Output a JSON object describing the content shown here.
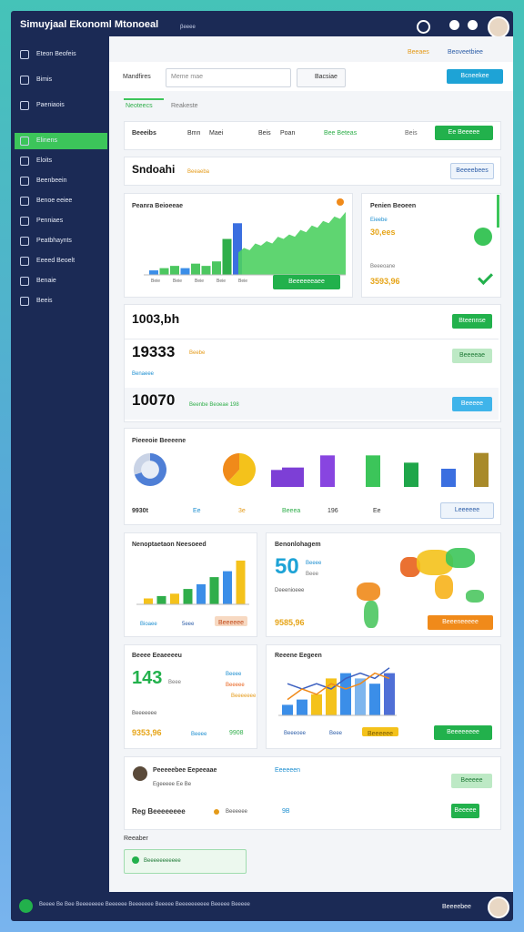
{
  "header": {
    "title": "Simuyjaal Ekonoml Mtonoeal",
    "badge": "βeeee"
  },
  "sidebar": {
    "items": [
      "Eteon Beofeis",
      "Bimis",
      "Paeniaois",
      "Elinens",
      "Eloits",
      "Beenbeein",
      "Benoe eeiee",
      "Penniaes",
      "Peatbhaynts",
      "Eeeed Beoelt",
      "Benaie",
      "Beeis"
    ]
  },
  "toolbar": {
    "label": "Mandfires",
    "select": "Meme mae",
    "search": "Bacsiae",
    "button": "Bcneekee",
    "top_links": [
      "Beeaes",
      "Beoveetbiee"
    ]
  },
  "tabs": [
    "Neoteecs",
    "Reakeste"
  ],
  "filters": {
    "label": "Beeeibs",
    "items": [
      "Bmn",
      "Maei",
      "Beis",
      "Poan"
    ],
    "tag": "Bee Beteas",
    "select": "Beis",
    "button": "Ee Beeeee"
  },
  "section": {
    "title": "Sndoahi",
    "tag": "Beeaeba",
    "button": "Beeeebees"
  },
  "sales_card": {
    "title": "Peanra Beioeeae",
    "button": "Beeeeeeaee",
    "x_labels": [
      "Beie",
      "Beie",
      "Beie",
      "Beie",
      "Beie"
    ],
    "chart": {
      "ylim": [
        0,
        30
      ],
      "bars": {
        "values": [
          2,
          3,
          4,
          3,
          5,
          4,
          6,
          16,
          23
        ],
        "colors": [
          "#3b8ee8",
          "#4cc760",
          "#4cc760",
          "#3b8ee8",
          "#4cc760",
          "#4cc760",
          "#4cc760",
          "#2fae4a",
          "#3b6fe0"
        ]
      },
      "area": {
        "color": "#4ed062",
        "values": [
          10,
          12,
          11,
          14,
          13,
          15,
          14,
          17,
          16,
          18,
          17,
          20,
          19,
          22,
          21,
          24,
          23,
          26,
          25,
          28
        ]
      }
    }
  },
  "side_card": {
    "title": "Penien Beoeen",
    "label": "Eieebe",
    "value": "30,ees",
    "note": "Beeeoane",
    "total": "3593,96"
  },
  "stats": {
    "rows": [
      {
        "value": "1003,bh",
        "button": "Bteennse"
      },
      {
        "value": "19333",
        "note": "Beebe",
        "sub": "Benaeee",
        "button": "Beeeeae"
      },
      {
        "value": "10070",
        "note": "Beenbe Beoeae 198",
        "button": "Beeeee"
      }
    ]
  },
  "pie_card": {
    "title": "Pieeeoie Beeeene",
    "donut": {
      "values": [
        70,
        30
      ],
      "colors": [
        "#4f7fd6",
        "#c9d3e6"
      ]
    },
    "pie": {
      "values": [
        62,
        38
      ],
      "colors": [
        "#f4c21b",
        "#f08a1a"
      ]
    },
    "bars": {
      "ylim": [
        0,
        3
      ],
      "values": [
        1.4,
        1.6,
        1.6,
        2.6,
        2.6,
        2,
        1.5,
        2.8
      ],
      "colors": [
        "#7d3fd6",
        "#7d3fd6",
        "#7d3fd6",
        "#8845e0",
        "#3cc55a",
        "#1fa64a",
        "#3b6fe0",
        "#a88a2a"
      ]
    },
    "footer": [
      "9930t",
      "Ee",
      "3e",
      "Beeea",
      "196",
      "Ee"
    ],
    "button": "Leeeeee"
  },
  "growth_card": {
    "title": "Nenoptaetaon Neesoeed",
    "ylim": [
      0,
      8
    ],
    "values": [
      1,
      1.4,
      1.8,
      2.6,
      3.4,
      4.6,
      5.6,
      7.4
    ],
    "colors": [
      "#f4c21b",
      "#2fae4a",
      "#f4c21b",
      "#2fae4a",
      "#3b8ee8",
      "#2fae4a",
      "#3b8ee8",
      "#f4c21b"
    ],
    "legend": [
      "Bioaee",
      "5eee"
    ],
    "button": "Beeeeee"
  },
  "map_card": {
    "title": "Benonlohagem",
    "value": "50",
    "labels": [
      "Beeee",
      "Beee"
    ],
    "note": "Deeenioeee",
    "total": "9585,96",
    "button": "Beeeneeeee"
  },
  "kpi_card": {
    "title": "Beeee Eeaeeeeu",
    "value": "143",
    "sub": "Beee",
    "items": [
      "Beeee",
      "Beeeee",
      "Beeeeeee"
    ],
    "note": "Beeeeeee",
    "footer": [
      "9353,96",
      "Beeee",
      "9908"
    ]
  },
  "combo_card": {
    "title": "Reeene Eegeen",
    "ylim": [
      0,
      10
    ],
    "bars": {
      "values": [
        2,
        3,
        4,
        7,
        8,
        7,
        6,
        8
      ],
      "colors": [
        "#3b8ee8",
        "#3b8ee8",
        "#f4c21b",
        "#f4c21b",
        "#3b8ee8",
        "#7fb6ee",
        "#3b8ee8",
        "#4f6fd6"
      ]
    },
    "lines": [
      {
        "color": "#3b5fc0",
        "values": [
          6,
          5,
          6,
          5,
          7,
          8,
          7,
          9
        ]
      },
      {
        "color": "#f08a1a",
        "values": [
          3,
          5,
          4,
          6,
          5,
          6,
          8,
          7
        ]
      }
    ],
    "legend": [
      "Beeeoee",
      "Beee"
    ],
    "chip": "Beeeeee",
    "button": "Beeeeeeee"
  },
  "bottom_card": {
    "title": "Peeeeebee Eepeeaae",
    "link": "Eeeeeen",
    "sub": "Egeeeee Ee Be",
    "button": "Beeeee",
    "row_title": "Reg Beeeeeeee",
    "row_note": "Beeeeee",
    "row_value": "9B",
    "row_button": "Beeeee"
  },
  "reminder": {
    "label": "Reeaber",
    "input": "Beeeeeeeeeee"
  },
  "footer": {
    "text": "Beeee Be Bee Beeeeeeee Beeeeee Beeeeeee Beeeee Beeeeeeeeee Beeeee Beeeee",
    "user": "Beeeebee"
  }
}
